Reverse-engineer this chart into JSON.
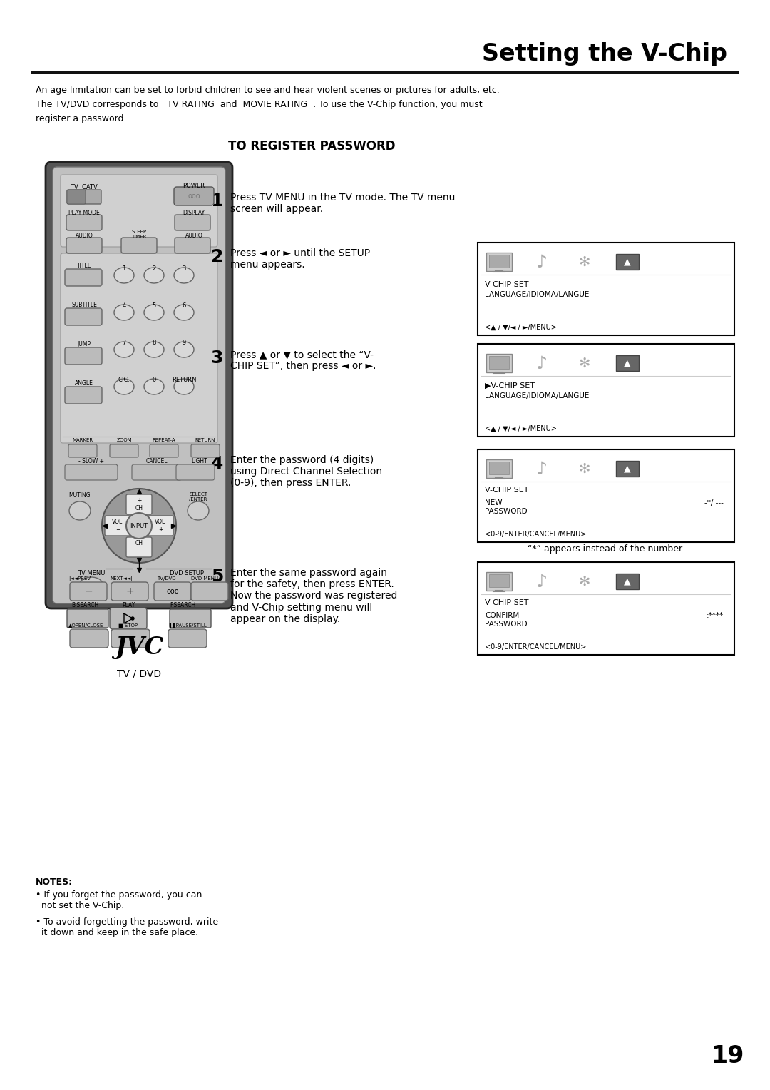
{
  "title": "Setting the V-Chip",
  "page_number": "19",
  "bg_color": "#ffffff",
  "title_fontsize": 24,
  "header_lines": [
    "An age limitation can be set to forbid children to see and hear violent scenes or pictures for adults, etc.",
    "The TV/DVD corresponds to   TV RATING  and  MOVIE RATING  . To use the V-Chip function, you must",
    "register a password."
  ],
  "section_header": "TO REGISTER PASSWORD",
  "step1_text": "Press TV MENU in the TV mode. The TV menu\nscreen will appear.",
  "step2_text": "Press ◄ or ► until the SETUP\nmenu appears.",
  "step3_text": "Press ▲ or ▼ to select the “V-\nCHIP SET”, then press ◄ or ►.",
  "step4_text": "Enter the password (4 digits)\nusing Direct Channel Selection\n(0-9), then press ENTER.",
  "step4_note": "“*” appears instead of the number.",
  "step5_text": "Enter the same password again\nfor the safety, then press ENTER.\nNow the password was registered\nand V-Chip setting menu will\nappear on the display.",
  "notes_header": "NOTES:",
  "note1": "• If you forget the password, you can-\n  not set the V-Chip.",
  "note2": "• To avoid forgetting the password, write\n  it down and keep in the safe place.",
  "remote_bg": "#c0c0c0",
  "remote_dark": "#888888",
  "remote_edge": "#444444"
}
